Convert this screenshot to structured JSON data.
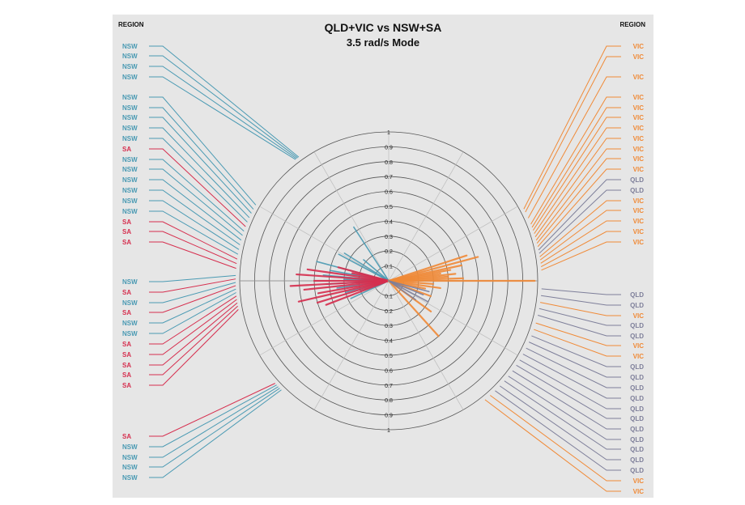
{
  "chart_data": {
    "type": "polar-radial",
    "title": "QLD+VIC vs NSW+SA",
    "subtitle": "3.5 rad/s Mode",
    "left_header": "REGION",
    "right_header": "REGION",
    "rlim": [
      0,
      1
    ],
    "ring_labels": [
      "0.1",
      "0.2",
      "0.3",
      "0.4",
      "0.5",
      "0.6",
      "0.7",
      "0.8",
      "0.9",
      "1"
    ],
    "colors": {
      "NSW": "#4a9ab3",
      "SA": "#d62e4e",
      "VIC": "#f08a37",
      "QLD": "#7e7f9a"
    },
    "left_labels": [
      "NSW",
      "NSW",
      "NSW",
      "NSW",
      "NSW",
      "NSW",
      "NSW",
      "NSW",
      "NSW",
      "SA",
      "NSW",
      "NSW",
      "NSW",
      "NSW",
      "NSW",
      "NSW",
      "SA",
      "SA",
      "SA",
      "NSW",
      "SA",
      "NSW",
      "SA",
      "NSW",
      "NSW",
      "SA",
      "SA",
      "SA",
      "SA",
      "SA",
      "SA",
      "NSW",
      "NSW",
      "NSW",
      "NSW"
    ],
    "right_labels": [
      "VIC",
      "VIC",
      "VIC",
      "VIC",
      "VIC",
      "VIC",
      "VIC",
      "VIC",
      "VIC",
      "VIC",
      "VIC",
      "QLD",
      "QLD",
      "VIC",
      "VIC",
      "VIC",
      "VIC",
      "VIC",
      "QLD",
      "QLD",
      "VIC",
      "QLD",
      "QLD",
      "VIC",
      "VIC",
      "QLD",
      "QLD",
      "QLD",
      "QLD",
      "QLD",
      "QLD",
      "QLD",
      "QLD",
      "QLD",
      "QLD",
      "QLD",
      "VIC",
      "VIC"
    ],
    "spokes": [
      {
        "region": "NSW",
        "angle": 123,
        "mag": 0.43
      },
      {
        "region": "NSW",
        "angle": 148,
        "mag": 0.35
      },
      {
        "region": "NSW",
        "angle": 152,
        "mag": 0.38
      },
      {
        "region": "NSW",
        "angle": 165,
        "mag": 0.5
      },
      {
        "region": "NSW",
        "angle": 170,
        "mag": 0.4
      },
      {
        "region": "NSW",
        "angle": 175,
        "mag": 0.44
      },
      {
        "region": "NSW",
        "angle": 178,
        "mag": 0.3
      },
      {
        "region": "NSW",
        "angle": 183,
        "mag": 0.42
      },
      {
        "region": "NSW",
        "angle": 188,
        "mag": 0.35
      },
      {
        "region": "NSW",
        "angle": 195,
        "mag": 0.3
      },
      {
        "region": "NSW",
        "angle": 205,
        "mag": 0.28
      },
      {
        "region": "NSW",
        "angle": 140,
        "mag": 0.22
      },
      {
        "region": "NSW",
        "angle": 200,
        "mag": 0.2
      },
      {
        "region": "SA",
        "angle": 172,
        "mag": 0.55
      },
      {
        "region": "SA",
        "angle": 176,
        "mag": 0.62
      },
      {
        "region": "SA",
        "angle": 180,
        "mag": 0.5
      },
      {
        "region": "SA",
        "angle": 183,
        "mag": 0.66
      },
      {
        "region": "SA",
        "angle": 186,
        "mag": 0.57
      },
      {
        "region": "SA",
        "angle": 190,
        "mag": 0.48
      },
      {
        "region": "SA",
        "angle": 193,
        "mag": 0.62
      },
      {
        "region": "SA",
        "angle": 197,
        "mag": 0.5
      },
      {
        "region": "SA",
        "angle": 201,
        "mag": 0.45
      },
      {
        "region": "SA",
        "angle": 165,
        "mag": 0.35
      },
      {
        "region": "SA",
        "angle": 168,
        "mag": 0.25
      },
      {
        "region": "VIC",
        "angle": 18,
        "mag": 0.55
      },
      {
        "region": "VIC",
        "angle": 15,
        "mag": 0.62
      },
      {
        "region": "VIC",
        "angle": 12,
        "mag": 0.5
      },
      {
        "region": "VIC",
        "angle": 10,
        "mag": 0.42
      },
      {
        "region": "VIC",
        "angle": 8,
        "mag": 0.35
      },
      {
        "region": "VIC",
        "angle": 6,
        "mag": 0.45
      },
      {
        "region": "VIC",
        "angle": 4,
        "mag": 0.4
      },
      {
        "region": "VIC",
        "angle": 2,
        "mag": 0.5
      },
      {
        "region": "VIC",
        "angle": 0,
        "mag": 0.98
      },
      {
        "region": "VIC",
        "angle": -4,
        "mag": 0.3
      },
      {
        "region": "VIC",
        "angle": -12,
        "mag": 0.25
      },
      {
        "region": "VIC",
        "angle": -48,
        "mag": 0.5
      },
      {
        "region": "VIC",
        "angle": -36,
        "mag": 0.35
      },
      {
        "region": "VIC",
        "angle": -8,
        "mag": 0.35
      },
      {
        "region": "VIC",
        "angle": -20,
        "mag": 0.3
      },
      {
        "region": "QLD",
        "angle": -15,
        "mag": 0.28
      },
      {
        "region": "QLD",
        "angle": -22,
        "mag": 0.25
      },
      {
        "region": "QLD",
        "angle": -28,
        "mag": 0.3
      },
      {
        "region": "QLD",
        "angle": -35,
        "mag": 0.22
      }
    ]
  }
}
